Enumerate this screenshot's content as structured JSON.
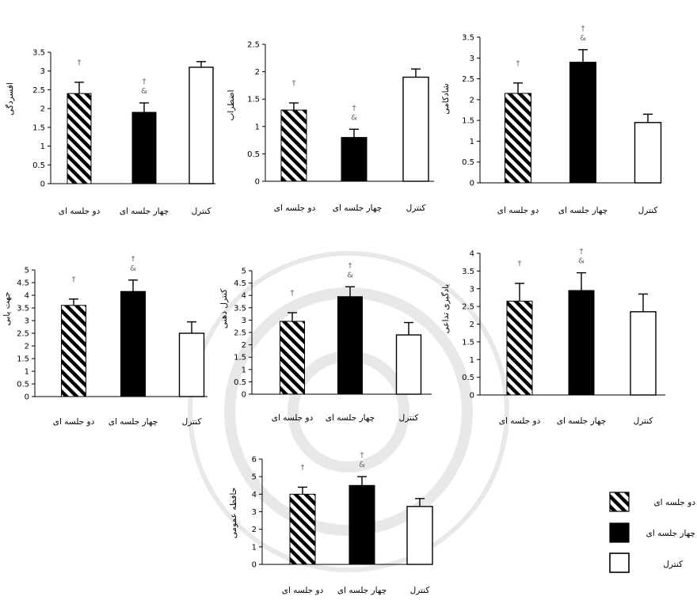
{
  "legend": {
    "items": [
      {
        "key": "two",
        "label": "دو جلسه ای"
      },
      {
        "key": "four",
        "label": "چهار جلسه ای"
      },
      {
        "key": "control",
        "label": "کنترل"
      }
    ]
  },
  "chart_data": [
    {
      "type": "bar",
      "ylabel": "افسردگی",
      "categories": [
        "دو جلسه ای",
        "چهار جلسه ای",
        "کنترل"
      ],
      "values": [
        2.4,
        1.9,
        3.1
      ],
      "errors": [
        0.3,
        0.25,
        0.15
      ],
      "ylim": [
        0,
        3.5
      ],
      "ticks": [
        "0",
        "0.5",
        "1",
        "1.5",
        "2",
        "2.5",
        "3",
        "3.5"
      ],
      "annotations": [
        "†",
        "†\n&",
        ""
      ]
    },
    {
      "type": "bar",
      "ylabel": "اضطراب",
      "categories": [
        "دو جلسه ای",
        "چهار جلسه ای",
        "کنترل"
      ],
      "values": [
        1.3,
        0.8,
        1.9
      ],
      "errors": [
        0.13,
        0.15,
        0.15
      ],
      "ylim": [
        0,
        2.5
      ],
      "ticks": [
        "0",
        "0.5",
        "1",
        "1.5",
        "2",
        "2.5"
      ],
      "annotations": [
        "†",
        "†\n&",
        ""
      ]
    },
    {
      "type": "bar",
      "ylabel": "شادکامی",
      "categories": [
        "دو جلسه ای",
        "چهار جلسه ای",
        "کنترل"
      ],
      "values": [
        2.15,
        2.9,
        1.45
      ],
      "errors": [
        0.25,
        0.3,
        0.2
      ],
      "ylim": [
        0,
        3.5
      ],
      "ticks": [
        "0",
        "0.5",
        "1",
        "1.5",
        "2",
        "2.5",
        "3",
        "3.5"
      ],
      "annotations": [
        "†",
        "†\n&",
        ""
      ]
    },
    {
      "type": "bar",
      "ylabel": "جهت یابی",
      "categories": [
        "دو جلسه ای",
        "چهار جلسه ای",
        "کنترل"
      ],
      "values": [
        3.6,
        4.15,
        2.5
      ],
      "errors": [
        0.25,
        0.45,
        0.45
      ],
      "ylim": [
        0,
        5
      ],
      "ticks": [
        "0",
        "0.5",
        "1",
        "1.5",
        "2",
        "2.5",
        "3",
        "3.5",
        "4",
        "4.5",
        "5"
      ],
      "annotations": [
        "†",
        "†\n&",
        ""
      ]
    },
    {
      "type": "bar",
      "ylabel": "کنترل ذهنی",
      "categories": [
        "دو جلسه ای",
        "چهار جلسه ای",
        "کنترل"
      ],
      "values": [
        2.95,
        3.95,
        2.4
      ],
      "errors": [
        0.35,
        0.4,
        0.5
      ],
      "ylim": [
        0,
        5
      ],
      "ticks": [
        "0",
        "0.5",
        "1",
        "1.5",
        "2",
        "2.5",
        "3",
        "3.5",
        "4",
        "4.5",
        "5"
      ],
      "annotations": [
        "†",
        "†\n&",
        ""
      ]
    },
    {
      "type": "bar",
      "ylabel": "یادگیری تداعی",
      "categories": [
        "دو جلسه ای",
        "چهار جلسه ای",
        "کنترل"
      ],
      "values": [
        2.65,
        2.95,
        2.35
      ],
      "errors": [
        0.5,
        0.5,
        0.5
      ],
      "ylim": [
        0,
        4
      ],
      "ticks": [
        "0",
        "0.5",
        "1",
        "1.5",
        "2",
        "2.5",
        "3",
        "3.5",
        "4"
      ],
      "annotations": [
        "†",
        "†\n&",
        ""
      ]
    },
    {
      "type": "bar",
      "ylabel": "حافظه عمومی",
      "categories": [
        "دو جلسه ای",
        "چهار جلسه ای",
        "کنترل"
      ],
      "values": [
        4.0,
        4.5,
        3.3
      ],
      "errors": [
        0.4,
        0.5,
        0.45
      ],
      "ylim": [
        0,
        6
      ],
      "ticks": [
        "0",
        "1",
        "2",
        "3",
        "4",
        "5",
        "6"
      ],
      "annotations": [
        "†",
        "†\n&",
        ""
      ]
    }
  ]
}
